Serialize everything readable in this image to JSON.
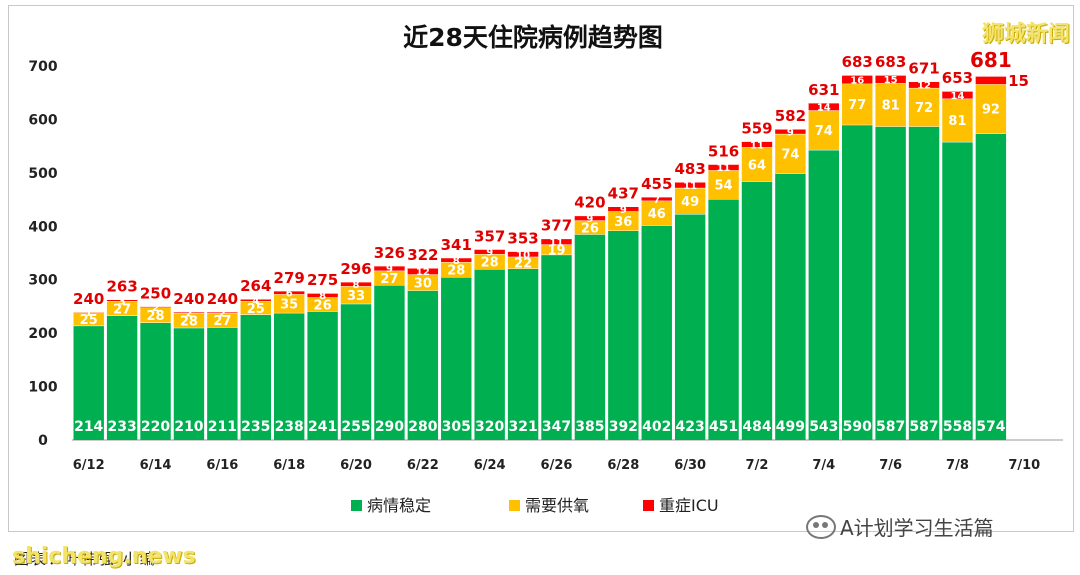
{
  "chart_data": {
    "type": "bar",
    "stacked": true,
    "title": "近28天住院病例趋势图",
    "categories": [
      "6/12",
      "6/13",
      "6/14",
      "6/15",
      "6/16",
      "6/17",
      "6/18",
      "6/19",
      "6/20",
      "6/21",
      "6/22",
      "6/23",
      "6/24",
      "6/25",
      "6/26",
      "6/27",
      "6/28",
      "6/29",
      "6/30",
      "7/1",
      "7/2",
      "7/3",
      "7/4",
      "7/5",
      "7/6",
      "7/7",
      "7/8",
      "7/9",
      "7/10"
    ],
    "x_tick_labels": [
      "6/12",
      "6/14",
      "6/16",
      "6/18",
      "6/20",
      "6/22",
      "6/24",
      "6/26",
      "6/28",
      "6/30",
      "7/2",
      "7/4",
      "7/6",
      "7/8",
      "7/10"
    ],
    "ylim": [
      0,
      700
    ],
    "y_ticks": [
      0,
      100,
      200,
      300,
      400,
      500,
      600,
      700
    ],
    "series": [
      {
        "name": "病情稳定",
        "color": "#00b050",
        "values": [
          214,
          233,
          220,
          210,
          211,
          235,
          238,
          241,
          255,
          290,
          280,
          305,
          320,
          321,
          347,
          385,
          392,
          402,
          423,
          451,
          484,
          499,
          543,
          590,
          587,
          587,
          558,
          574,
          null
        ]
      },
      {
        "name": "需要供氧",
        "color": "#ffc000",
        "values": [
          25,
          27,
          28,
          28,
          27,
          25,
          35,
          26,
          33,
          27,
          30,
          28,
          28,
          22,
          19,
          26,
          36,
          46,
          49,
          54,
          64,
          74,
          74,
          77,
          81,
          72,
          81,
          92,
          null
        ]
      },
      {
        "name": "重症ICU",
        "color": "#ff0000",
        "values": [
          1,
          3,
          2,
          2,
          2,
          4,
          6,
          8,
          8,
          9,
          12,
          8,
          9,
          10,
          11,
          9,
          9,
          7,
          11,
          11,
          11,
          9,
          14,
          16,
          15,
          12,
          14,
          15,
          null
        ]
      }
    ],
    "totals": [
      240,
      263,
      250,
      240,
      240,
      264,
      279,
      275,
      296,
      326,
      322,
      341,
      357,
      353,
      377,
      420,
      437,
      455,
      483,
      516,
      559,
      582,
      631,
      683,
      683,
      671,
      653,
      681,
      null
    ],
    "highlight_last": true,
    "legend_position": "bottom",
    "grid": false
  },
  "overlays": {
    "top_watermark": "狮城新闻",
    "bottom_watermark": "shicheng.news",
    "source_text": "图表：叶伟强 小编",
    "credit_text": "A计划学习生活篇"
  }
}
